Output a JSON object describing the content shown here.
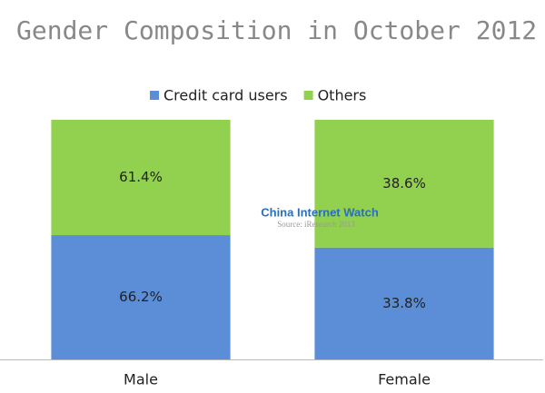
{
  "chart_data": {
    "type": "bar",
    "stack": "percent",
    "title": "Gender Composition in October 2012",
    "categories": [
      "Male",
      "Female"
    ],
    "series": [
      {
        "name": "Credit card users",
        "color": "#5b8ed6",
        "values": [
          66.2,
          33.8
        ],
        "value_labels": [
          "66.2%",
          "33.8%"
        ]
      },
      {
        "name": "Others",
        "color": "#92d050",
        "values": [
          61.4,
          38.6
        ],
        "value_labels": [
          "61.4%",
          "38.6%"
        ]
      }
    ],
    "legend": "top",
    "watermark": [
      "China Internet Watch",
      "Source: iResearch 2013"
    ]
  }
}
